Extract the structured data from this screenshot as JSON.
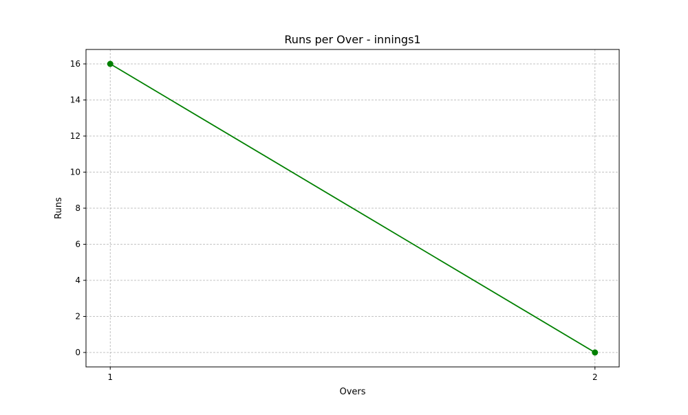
{
  "chart_data": {
    "type": "line",
    "title": "Runs per Over - innings1",
    "xlabel": "Overs",
    "ylabel": "Runs",
    "x": [
      1,
      2
    ],
    "x_ticks": [
      1,
      2
    ],
    "y_ticks": [
      0,
      2,
      4,
      6,
      8,
      10,
      12,
      14,
      16
    ],
    "xlim": [
      0.95,
      2.05
    ],
    "ylim": [
      -0.8,
      16.8
    ],
    "grid": true,
    "series": [
      {
        "values": [
          16,
          0
        ],
        "color": "#008000",
        "marker": "circle"
      }
    ]
  }
}
